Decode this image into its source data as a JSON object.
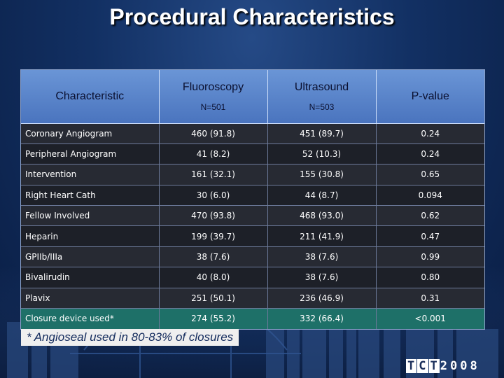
{
  "slide": {
    "title": "Procedural Characteristics",
    "footnote": "* Angioseal used in 80-83% of closures",
    "logo": {
      "parts": [
        "T",
        "C",
        "T",
        "2",
        "0",
        "0",
        "8"
      ]
    }
  },
  "table": {
    "headers": {
      "characteristic": "Characteristic",
      "fluoroscopy": "Fluoroscopy",
      "fluoroscopy_n": "N=501",
      "ultrasound": "Ultrasound",
      "ultrasound_n": "N=503",
      "pvalue": "P-value"
    },
    "rows": [
      {
        "label": "Coronary Angiogram",
        "fluoro": "460 (91.8)",
        "ultra": "451 (89.7)",
        "p": "0.24"
      },
      {
        "label": "Peripheral Angiogram",
        "fluoro": "41 (8.2)",
        "ultra": "52 (10.3)",
        "p": "0.24"
      },
      {
        "label": "Intervention",
        "fluoro": "161 (32.1)",
        "ultra": "155 (30.8)",
        "p": "0.65"
      },
      {
        "label": "Right Heart Cath",
        "fluoro": "30 (6.0)",
        "ultra": "44 (8.7)",
        "p": "0.094"
      },
      {
        "label": "Fellow Involved",
        "fluoro": "470 (93.8)",
        "ultra": "468 (93.0)",
        "p": "0.62"
      },
      {
        "label": "Heparin",
        "fluoro": "199 (39.7)",
        "ultra": "211 (41.9)",
        "p": "0.47"
      },
      {
        "label": "GPIIb/IIIa",
        "fluoro": "38 (7.6)",
        "ultra": "38 (7.6)",
        "p": "0.99"
      },
      {
        "label": "Bivalirudin",
        "fluoro": "40 (8.0)",
        "ultra": "38 (7.6)",
        "p": "0.80"
      },
      {
        "label": "Plavix",
        "fluoro": "251 (50.1)",
        "ultra": "236 (46.9)",
        "p": "0.31"
      },
      {
        "label": "Closure device used*",
        "fluoro": "274 (55.2)",
        "ultra": "332 (66.4)",
        "p": "<0.001"
      }
    ]
  }
}
